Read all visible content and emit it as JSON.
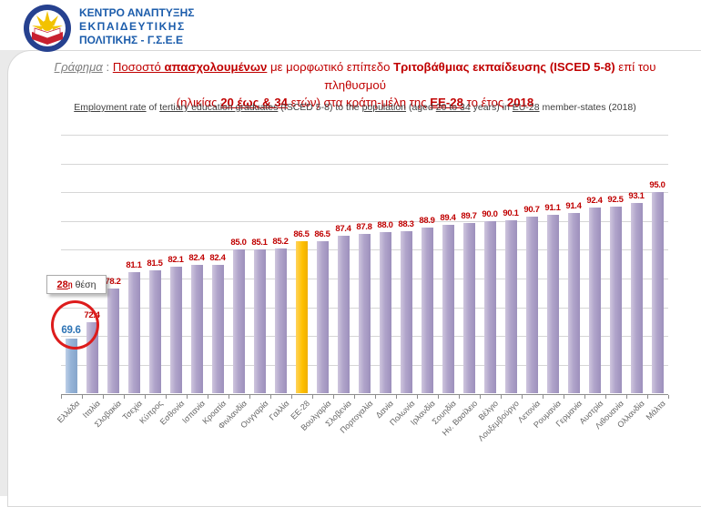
{
  "logo": {
    "line1": "ΚΕΝΤΡΟ ΑΝΑΠΤΥΞΗΣ",
    "line2": "ΕΚΠΑΙΔΕΥΤΙΚΗΣ",
    "line3": "ΠΟΛΙΤΙΚΗΣ - Γ.Σ.Ε.Ε",
    "emblem": "kanep-gsee-round-emblem",
    "colors": {
      "text": "#1b5cab",
      "ring": "#26418f",
      "book": "#c8202f",
      "sun": "#f2c200"
    }
  },
  "title": {
    "line1": [
      {
        "t": "Γράφημα",
        "gray": 1,
        "i": 1,
        "u": 1
      },
      {
        "t": " : ",
        "gray": 1
      },
      {
        "t": "Ποσοστό ",
        "u": 1
      },
      {
        "t": "απασχολουμένων",
        "b": 1,
        "u": 1
      },
      {
        "t": " με μορφωτικό επίπεδο "
      },
      {
        "t": "Τριτοβάθμιας εκπαίδευσης (ISCED 5-8)",
        "b": 1
      },
      {
        "t": " επί του πληθυσμού"
      }
    ],
    "line2": [
      {
        "t": "(ηλικίας "
      },
      {
        "t": "20 έως & 34",
        "b": 1,
        "u": 1
      },
      {
        "t": " ετών) στα κράτη-μέλη της "
      },
      {
        "t": "ΕΕ-28",
        "b": 1,
        "u": 1
      },
      {
        "t": " το έτος "
      },
      {
        "t": "2018",
        "b": 1
      }
    ],
    "subtitle_en": [
      {
        "t": "Employment rate",
        "u": 1
      },
      {
        "t": " of "
      },
      {
        "t": "tertiary education graduates",
        "u": 1
      },
      {
        "t": " (ISCED 5-8) to the "
      },
      {
        "t": "population",
        "u": 1
      },
      {
        "t": " (aged "
      },
      {
        "t": "20 to 34",
        "u": 1
      },
      {
        "t": " years) in "
      },
      {
        "t": "EU-28",
        "u": 1
      },
      {
        "t": " member-states (2018)"
      }
    ]
  },
  "callout": {
    "rank": "28",
    "rank_sup": "η",
    "label": "θέση"
  },
  "chart_data": {
    "type": "bar",
    "title": "Ποσοστό απασχολουμένων με μορφωτικό επίπεδο Τριτοβάθμιας εκπαίδευσης (ISCED 5-8) επί του πληθυσμού (ηλικίας 20 έως & 34 ετών) στα κράτη-μέλη της ΕΕ-28 το έτος 2018",
    "subtitle": "Employment rate of tertiary education graduates (ISCED 5-8) to the population (aged 20 to 34 years) in EU-28 member-states (2018)",
    "categories": [
      "Ελλάδα",
      "Ιταλία",
      "Σλοβακία",
      "Τσεχία",
      "Κύπρος",
      "Εσθονία",
      "Ισπανία",
      "Κροατία",
      "Φινλανδία",
      "Ουγγαρία",
      "Γαλλία",
      "ΕΕ-28",
      "Βουλγαρία",
      "Σλοβενία",
      "Πορτογαλία",
      "Δανία",
      "Πολωνία",
      "Ιρλανδία",
      "Σουηδία",
      "Ην. Βασίλειο",
      "Βέλγιο",
      "Λουξεμβούργο",
      "Λετονία",
      "Ρουμανία",
      "Γερμανία",
      "Αυστρία",
      "Λιθουανία",
      "Ολλανδία",
      "Μάλτα"
    ],
    "values": [
      69.6,
      72.4,
      78.2,
      81.1,
      81.5,
      82.1,
      82.4,
      82.4,
      85.0,
      85.1,
      85.2,
      86.5,
      86.5,
      87.4,
      87.8,
      88.0,
      88.3,
      88.9,
      89.4,
      89.7,
      90.0,
      90.1,
      90.7,
      91.1,
      91.4,
      92.4,
      92.5,
      93.1,
      95.0
    ],
    "xlabel": "",
    "ylabel": "",
    "ylim": [
      60,
      105
    ],
    "gridline_step": 5,
    "grid": "horizontal",
    "legend_position": "none",
    "highlight": {
      "greece_index": 0,
      "eu28_index": 11
    },
    "colors": {
      "bar_default": "#aca0c8",
      "bar_greece": "#95b3d7",
      "bar_eu28": "#ffc000",
      "value_label": "#c00000",
      "value_label_greece": "#2e74b5",
      "gridline": "#d6d6d6",
      "axis": "#8c8c8c",
      "category_label": "#666666"
    },
    "annotations": [
      {
        "type": "callout-box",
        "text": "28η θέση",
        "target": "Ελλάδα"
      },
      {
        "type": "circle",
        "color": "#dd1c1c",
        "target": "Ελλάδα value label"
      }
    ]
  }
}
